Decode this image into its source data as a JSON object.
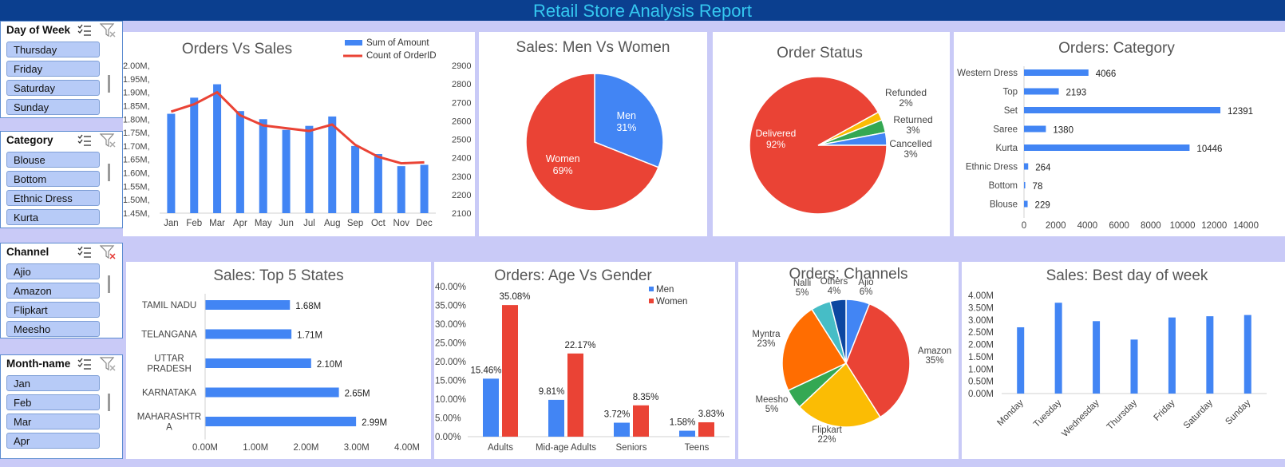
{
  "report_title": "Retail Store Analysis Report",
  "colors": {
    "blue": "#4285f4",
    "red": "#ea4335",
    "green": "#34a853",
    "yellow": "#fbbc04",
    "orange": "#ff6d01",
    "teal": "#46bdc6",
    "navy": "#0d47a1"
  },
  "slicers": [
    {
      "title": "Day of Week",
      "items": [
        "Thursday",
        "Friday",
        "Saturday",
        "Sunday"
      ],
      "filter_active": false
    },
    {
      "title": "Category",
      "items": [
        "Blouse",
        "Bottom",
        "Ethnic Dress",
        "Kurta"
      ],
      "filter_active": false
    },
    {
      "title": "Channel",
      "items": [
        "Ajio",
        "Amazon",
        "Flipkart",
        "Meesho"
      ],
      "filter_active": true
    },
    {
      "title": "Month-name",
      "items": [
        "Jan",
        "Feb",
        "Mar",
        "Apr"
      ],
      "filter_active": false
    }
  ],
  "charts": {
    "orders_vs_sales": {
      "title": "Orders Vs Sales",
      "type": "bar+line",
      "legend": [
        "Sum of Amount",
        "Count of OrderID"
      ],
      "categories": [
        "Jan",
        "Feb",
        "Mar",
        "Apr",
        "May",
        "Jun",
        "Jul",
        "Aug",
        "Sep",
        "Oct",
        "Nov",
        "Dec"
      ],
      "amount": [
        1.82,
        1.88,
        1.93,
        1.83,
        1.8,
        1.76,
        1.775,
        1.81,
        1.7,
        1.67,
        1.625,
        1.63
      ],
      "orders": [
        2650,
        2690,
        2755,
        2630,
        2575,
        2560,
        2545,
        2580,
        2470,
        2405,
        2370,
        2375
      ],
      "left_ticks": [
        "2.00M,",
        "1.95M,",
        "1.90M,",
        "1.85M,",
        "1.80M,",
        "1.75M,",
        "1.70M,",
        "1.65M,",
        "1.60M,",
        "1.55M,",
        "1.50M,",
        "1.45M,"
      ],
      "right_ticks": [
        "2900",
        "2800",
        "2700",
        "2600",
        "2500",
        "2400",
        "2300",
        "2200",
        "2100"
      ],
      "ylim_left": [
        1.45,
        2.0
      ],
      "ylim_right": [
        2100,
        2900
      ]
    },
    "men_women": {
      "title": "Sales: Men Vs Women",
      "type": "pie",
      "slices": [
        {
          "label": "Men",
          "pct": "31%",
          "value": 31
        },
        {
          "label": "Women",
          "pct": "69%",
          "value": 69
        }
      ]
    },
    "order_status": {
      "title": "Order Status",
      "type": "pie",
      "slices": [
        {
          "label": "Delivered",
          "pct": "92%",
          "value": 92
        },
        {
          "label": "Refunded",
          "pct": "2%",
          "value": 2
        },
        {
          "label": "Returned",
          "pct": "3%",
          "value": 3
        },
        {
          "label": "Cancelled",
          "pct": "3%",
          "value": 3
        }
      ]
    },
    "category": {
      "title": "Orders: Category",
      "type": "bar",
      "categories": [
        "Western Dress",
        "Top",
        "Set",
        "Saree",
        "Kurta",
        "Ethnic Dress",
        "Bottom",
        "Blouse"
      ],
      "values": [
        4066,
        2193,
        12391,
        1380,
        10446,
        264,
        78,
        229
      ],
      "ticks": [
        "0",
        "2000",
        "4000",
        "6000",
        "8000",
        "10000",
        "12000",
        "14000"
      ],
      "xlim": [
        0,
        14000
      ]
    },
    "top_states": {
      "title": "Sales: Top 5 States",
      "type": "bar",
      "categories": [
        [
          "TAMIL NADU"
        ],
        [
          "TELANGANA"
        ],
        [
          "UTTAR",
          "PRADESH"
        ],
        [
          "KARNATAKA"
        ],
        [
          "MAHARASHTR",
          "A"
        ]
      ],
      "values": [
        1.68,
        1.71,
        2.1,
        2.65,
        2.99
      ],
      "labels": [
        "1.68M",
        "1.71M",
        "2.10M",
        "2.65M",
        "2.99M"
      ],
      "ticks": [
        "0.00M",
        "1.00M",
        "2.00M",
        "3.00M",
        "4.00M"
      ],
      "xlim": [
        0,
        4
      ]
    },
    "age_gender": {
      "title": "Orders: Age Vs Gender",
      "type": "bar",
      "categories": [
        "Adults",
        "Mid-age Adults",
        "Seniors",
        "Teens"
      ],
      "series": [
        {
          "name": "Men",
          "values": [
            15.46,
            9.81,
            3.72,
            1.58
          ],
          "labels": [
            "15.46%",
            "9.81%",
            "3.72%",
            "1.58%"
          ]
        },
        {
          "name": "Women",
          "values": [
            35.08,
            22.17,
            8.35,
            3.83
          ],
          "labels": [
            "35.08%",
            "22.17%",
            "8.35%",
            "3.83%"
          ]
        }
      ],
      "ticks": [
        "40.00%",
        "35.00%",
        "30.00%",
        "25.00%",
        "20.00%",
        "15.00%",
        "10.00%",
        "5.00%",
        "0.00%"
      ],
      "ylim": [
        0,
        40
      ]
    },
    "channels": {
      "title": "Orders: Channels",
      "type": "pie",
      "slices": [
        {
          "label": "Ajio",
          "pct": "6%",
          "value": 6
        },
        {
          "label": "Amazon",
          "pct": "35%",
          "value": 35
        },
        {
          "label": "Flipkart",
          "pct": "22%",
          "value": 22
        },
        {
          "label": "Meesho",
          "pct": "5%",
          "value": 5
        },
        {
          "label": "Myntra",
          "pct": "23%",
          "value": 23
        },
        {
          "label": "Nalli",
          "pct": "5%",
          "value": 5
        },
        {
          "label": "Others",
          "pct": "4%",
          "value": 4
        }
      ]
    },
    "best_day": {
      "title": "Sales: Best day of week",
      "type": "bar",
      "categories": [
        "Monday",
        "Tuesday",
        "Wednesday",
        "Thursday",
        "Friday",
        "Saturday",
        "Sunday"
      ],
      "values": [
        2.7,
        3.7,
        2.95,
        2.2,
        3.1,
        3.15,
        3.2
      ],
      "ticks": [
        "4.00M",
        "3.50M",
        "3.00M",
        "2.50M",
        "2.00M",
        "1.50M",
        "1.00M",
        "0.50M",
        "0.00M"
      ],
      "ylim": [
        0,
        4
      ]
    }
  }
}
